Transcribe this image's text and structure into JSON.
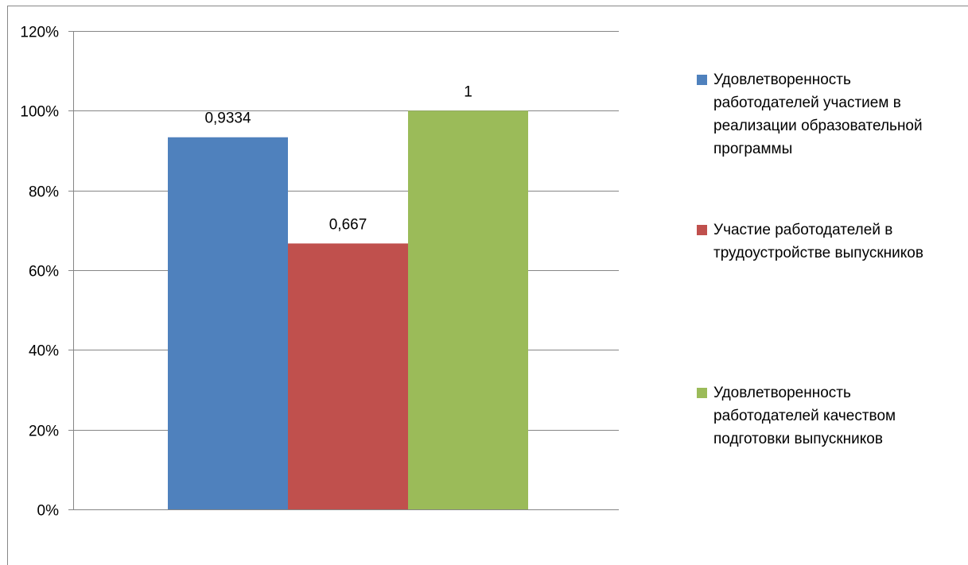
{
  "chart_data": {
    "type": "bar",
    "categories": [
      ""
    ],
    "series": [
      {
        "name": "Удовлетворенность работодателей участием в реализации образовательной программы",
        "values": [
          0.9334
        ],
        "label": "0,9334",
        "color": "#4f81bd"
      },
      {
        "name": "Участие работодателей в трудоустройстве выпускников",
        "values": [
          0.667
        ],
        "label": "0,667",
        "color": "#c0504d"
      },
      {
        "name": "Удовлетворенность работодателей качеством подготовки выпускников",
        "values": [
          1
        ],
        "label": "1",
        "color": "#9bbb59"
      }
    ],
    "y_ticks": [
      {
        "value": 0,
        "label": "0%"
      },
      {
        "value": 0.2,
        "label": "20%"
      },
      {
        "value": 0.4,
        "label": "40%"
      },
      {
        "value": 0.6,
        "label": "60%"
      },
      {
        "value": 0.8,
        "label": "80%"
      },
      {
        "value": 1.0,
        "label": "100%"
      },
      {
        "value": 1.2,
        "label": "120%"
      }
    ],
    "ylim": [
      0,
      1.2
    ],
    "grid": true,
    "legend_position": "right",
    "gridline_color": "#868686"
  }
}
